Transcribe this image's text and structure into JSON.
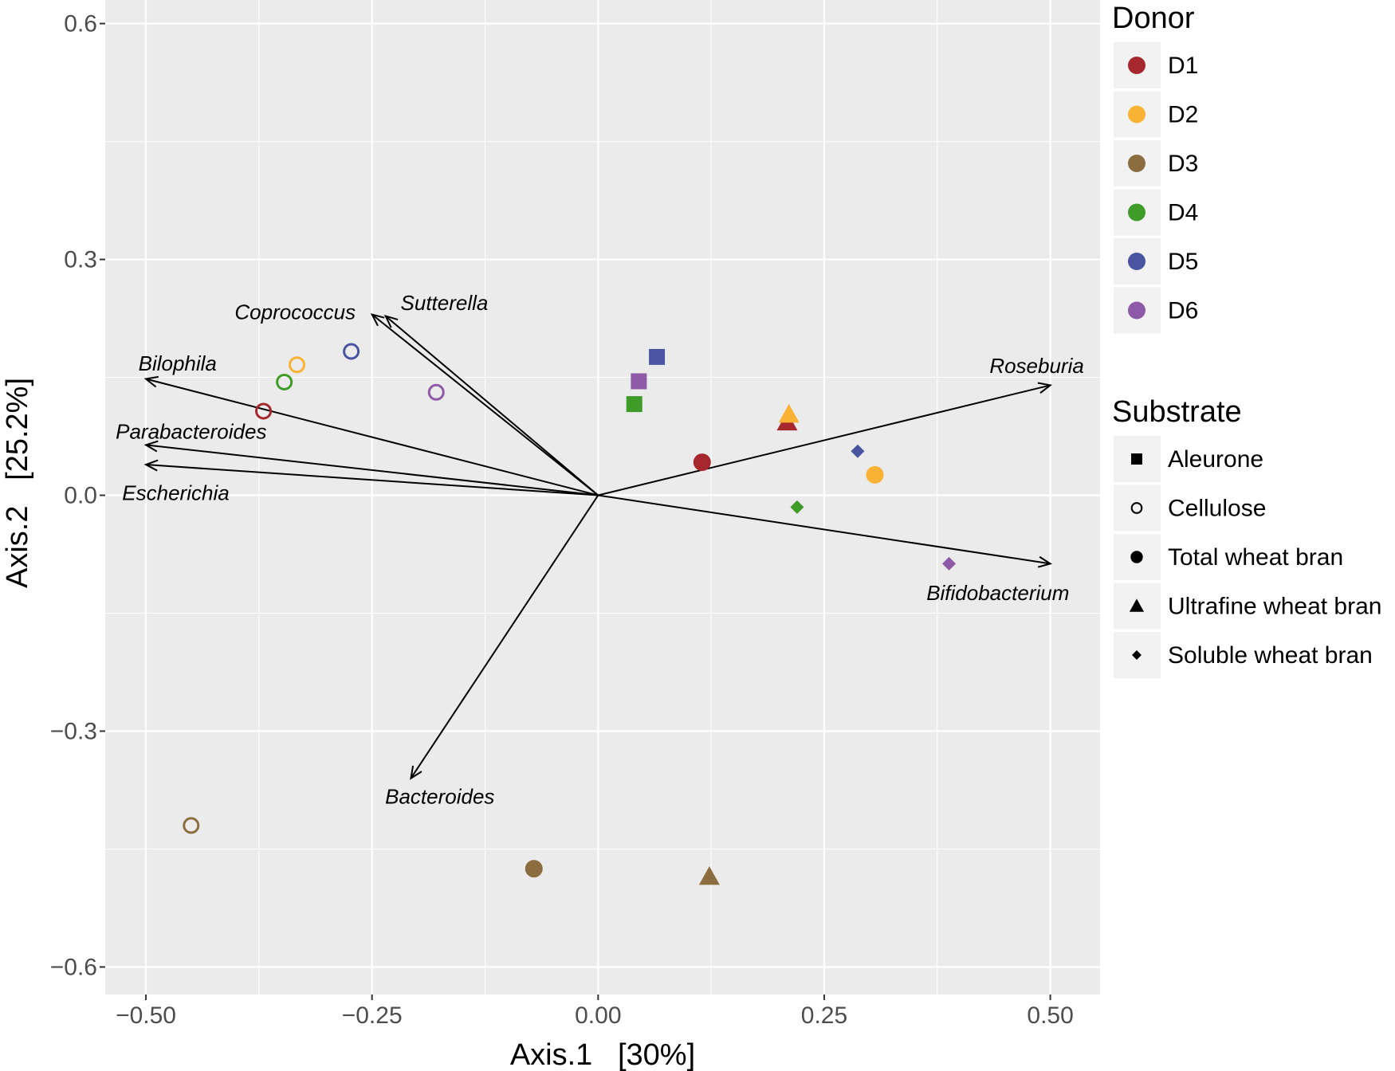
{
  "chart_data": {
    "type": "scatter",
    "title": "",
    "xlabel": "Axis.1   [30%]",
    "ylabel": "Axis.2   [25.2%]",
    "xlim": [
      -0.545,
      0.555
    ],
    "ylim": [
      -0.635,
      0.63
    ],
    "xticks": [
      -0.5,
      -0.25,
      0.0,
      0.25,
      0.5
    ],
    "xtick_labels": [
      "−0.50",
      "−0.25",
      "0.00",
      "0.25",
      "0.50"
    ],
    "yticks": [
      -0.6,
      -0.3,
      0.0,
      0.3,
      0.6
    ],
    "ytick_labels": [
      "−0.6",
      "−0.3",
      "0.0",
      "0.3",
      "0.6"
    ],
    "grid": true,
    "donor_legend": {
      "title": "Donor",
      "entries": [
        {
          "name": "D1",
          "color": "#A6282E"
        },
        {
          "name": "D2",
          "color": "#F9B233"
        },
        {
          "name": "D3",
          "color": "#8C6D3F"
        },
        {
          "name": "D4",
          "color": "#3F9C28"
        },
        {
          "name": "D5",
          "color": "#4A55A2"
        },
        {
          "name": "D6",
          "color": "#8E5AA8"
        }
      ]
    },
    "substrate_legend": {
      "title": "Substrate",
      "entries": [
        {
          "name": "Aleurone",
          "shape": "square"
        },
        {
          "name": "Cellulose",
          "shape": "open-circle"
        },
        {
          "name": "Total wheat bran",
          "shape": "circle"
        },
        {
          "name": "Ultrafine wheat bran",
          "shape": "triangle"
        },
        {
          "name": "Soluble wheat bran",
          "shape": "diamond"
        }
      ]
    },
    "points": [
      {
        "donor": "D1",
        "substrate": "Cellulose",
        "x": -0.37,
        "y": 0.107
      },
      {
        "donor": "D2",
        "substrate": "Cellulose",
        "x": -0.333,
        "y": 0.166
      },
      {
        "donor": "D4",
        "substrate": "Cellulose",
        "x": -0.347,
        "y": 0.144
      },
      {
        "donor": "D5",
        "substrate": "Cellulose",
        "x": -0.273,
        "y": 0.183
      },
      {
        "donor": "D6",
        "substrate": "Cellulose",
        "x": -0.179,
        "y": 0.131
      },
      {
        "donor": "D3",
        "substrate": "Cellulose",
        "x": -0.45,
        "y": -0.42
      },
      {
        "donor": "D5",
        "substrate": "Aleurone",
        "x": 0.065,
        "y": 0.176
      },
      {
        "donor": "D6",
        "substrate": "Aleurone",
        "x": 0.045,
        "y": 0.145
      },
      {
        "donor": "D4",
        "substrate": "Aleurone",
        "x": 0.04,
        "y": 0.116
      },
      {
        "donor": "D1",
        "substrate": "Total wheat bran",
        "x": 0.115,
        "y": 0.042
      },
      {
        "donor": "D2",
        "substrate": "Total wheat bran",
        "x": 0.306,
        "y": 0.026
      },
      {
        "donor": "D3",
        "substrate": "Total wheat bran",
        "x": -0.071,
        "y": -0.475
      },
      {
        "donor": "D1",
        "substrate": "Ultrafine wheat bran",
        "x": 0.209,
        "y": 0.093
      },
      {
        "donor": "D2",
        "substrate": "Ultrafine wheat bran",
        "x": 0.211,
        "y": 0.103
      },
      {
        "donor": "D3",
        "substrate": "Ultrafine wheat bran",
        "x": 0.123,
        "y": -0.485
      },
      {
        "donor": "D5",
        "substrate": "Soluble wheat bran",
        "x": 0.287,
        "y": 0.056
      },
      {
        "donor": "D4",
        "substrate": "Soluble wheat bran",
        "x": 0.22,
        "y": -0.015
      },
      {
        "donor": "D6",
        "substrate": "Soluble wheat bran",
        "x": 0.388,
        "y": -0.087
      }
    ],
    "arrows": [
      {
        "label": "Coprococcus",
        "x": -0.25,
        "y": 0.23,
        "label_x": -0.335,
        "label_y": 0.233
      },
      {
        "label": "Sutterella",
        "x": -0.235,
        "y": 0.228,
        "label_x": -0.17,
        "label_y": 0.245
      },
      {
        "label": "Bilophila",
        "x": -0.5,
        "y": 0.148,
        "label_x": -0.465,
        "label_y": 0.168
      },
      {
        "label": "Parabacteroides",
        "x": -0.5,
        "y": 0.064,
        "label_x": -0.45,
        "label_y": 0.081
      },
      {
        "label": "Escherichia",
        "x": -0.5,
        "y": 0.039,
        "label_x": -0.467,
        "label_y": 0.003
      },
      {
        "label": "Roseburia",
        "x": 0.5,
        "y": 0.14,
        "label_x": 0.485,
        "label_y": 0.165
      },
      {
        "label": "Bifidobacterium",
        "x": 0.5,
        "y": -0.087,
        "label_x": 0.442,
        "label_y": -0.124
      },
      {
        "label": "Bacteroides",
        "x": -0.207,
        "y": -0.36,
        "label_x": -0.175,
        "label_y": -0.383
      }
    ]
  }
}
